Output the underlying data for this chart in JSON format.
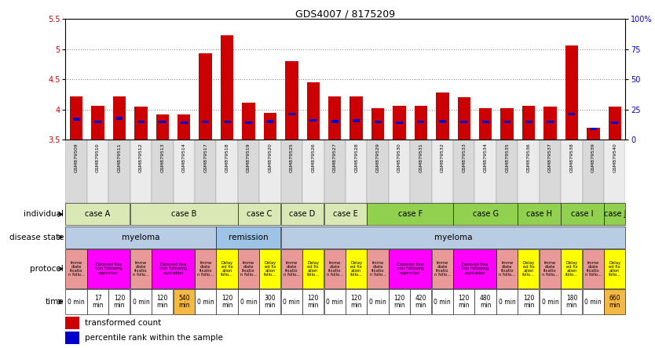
{
  "title": "GDS4007 / 8175209",
  "gsm_ids": [
    "GSM879509",
    "GSM879510",
    "GSM879511",
    "GSM879512",
    "GSM879513",
    "GSM879514",
    "GSM879517",
    "GSM879518",
    "GSM879519",
    "GSM879520",
    "GSM879525",
    "GSM879526",
    "GSM879527",
    "GSM879528",
    "GSM879529",
    "GSM879530",
    "GSM879531",
    "GSM879532",
    "GSM879533",
    "GSM879534",
    "GSM879535",
    "GSM879536",
    "GSM879537",
    "GSM879538",
    "GSM879539",
    "GSM879540"
  ],
  "red_values": [
    4.22,
    4.06,
    4.22,
    4.05,
    3.92,
    3.92,
    4.93,
    5.23,
    4.12,
    3.95,
    4.8,
    4.45,
    4.22,
    4.22,
    4.02,
    4.06,
    4.06,
    4.28,
    4.21,
    4.02,
    4.02,
    4.06,
    4.05,
    5.06,
    3.7,
    4.05
  ],
  "blue_values": [
    3.82,
    3.77,
    3.83,
    3.77,
    3.77,
    3.76,
    3.77,
    3.77,
    3.76,
    3.78,
    3.9,
    3.8,
    3.78,
    3.79,
    3.77,
    3.76,
    3.77,
    3.78,
    3.77,
    3.77,
    3.77,
    3.77,
    3.77,
    3.9,
    3.77,
    3.76
  ],
  "y_min": 3.5,
  "y_max": 5.5,
  "y_ticks": [
    3.5,
    4.0,
    4.5,
    5.0,
    5.5
  ],
  "y2_ticks_labels": [
    "0",
    "25",
    "50",
    "75",
    "100%"
  ],
  "y2_tick_positions": [
    3.5,
    4.0,
    4.5,
    5.0,
    5.5
  ],
  "individual_labels": [
    {
      "label": "case A",
      "start": 0,
      "end": 3,
      "color": "#d9e8b4"
    },
    {
      "label": "case B",
      "start": 3,
      "end": 8,
      "color": "#d9e8b4"
    },
    {
      "label": "case C",
      "start": 8,
      "end": 10,
      "color": "#d9e8b4"
    },
    {
      "label": "case D",
      "start": 10,
      "end": 12,
      "color": "#d9e8b4"
    },
    {
      "label": "case E",
      "start": 12,
      "end": 14,
      "color": "#d9e8b4"
    },
    {
      "label": "case F",
      "start": 14,
      "end": 18,
      "color": "#92d050"
    },
    {
      "label": "case G",
      "start": 18,
      "end": 21,
      "color": "#92d050"
    },
    {
      "label": "case H",
      "start": 21,
      "end": 23,
      "color": "#92d050"
    },
    {
      "label": "case I",
      "start": 23,
      "end": 25,
      "color": "#92d050"
    },
    {
      "label": "case J",
      "start": 25,
      "end": 26,
      "color": "#92d050"
    }
  ],
  "disease_state": [
    {
      "label": "myeloma",
      "start": 0,
      "end": 7,
      "color": "#b8cce4"
    },
    {
      "label": "remission",
      "start": 7,
      "end": 10,
      "color": "#9dc3e6"
    },
    {
      "label": "myeloma",
      "start": 10,
      "end": 26,
      "color": "#b8cce4"
    }
  ],
  "protocol_data": [
    {
      "label": "Imme\ndiate\nfixatio\nn follo...",
      "start": 0,
      "end": 1,
      "color": "#ea9999"
    },
    {
      "label": "Delayed fixa\ntion following\naspiration",
      "start": 1,
      "end": 3,
      "color": "#ff00ff"
    },
    {
      "label": "Imme\ndiate\nfixatio\nn follo...",
      "start": 3,
      "end": 4,
      "color": "#ea9999"
    },
    {
      "label": "Delayed fixa\ntion following\naspiration",
      "start": 4,
      "end": 6,
      "color": "#ff00ff"
    },
    {
      "label": "Imme\ndiate\nfixatio\nn follo...",
      "start": 6,
      "end": 7,
      "color": "#ea9999"
    },
    {
      "label": "Delay\ned fix\nation\nfollo...",
      "start": 7,
      "end": 8,
      "color": "#ffff00"
    },
    {
      "label": "Imme\ndiate\nfixatio\nn follo...",
      "start": 8,
      "end": 9,
      "color": "#ea9999"
    },
    {
      "label": "Delay\ned fix\nation\nfollo...",
      "start": 9,
      "end": 10,
      "color": "#ffff00"
    },
    {
      "label": "Imme\ndiate\nfixatio\nn follo...",
      "start": 10,
      "end": 11,
      "color": "#ea9999"
    },
    {
      "label": "Delay\ned fix\nation\nfollo...",
      "start": 11,
      "end": 12,
      "color": "#ffff00"
    },
    {
      "label": "Imme\ndiate\nfixatio\nn follo...",
      "start": 12,
      "end": 13,
      "color": "#ea9999"
    },
    {
      "label": "Delay\ned fix\nation\nfollo...",
      "start": 13,
      "end": 14,
      "color": "#ffff00"
    },
    {
      "label": "Imme\ndiate\nfixatio\nn follo...",
      "start": 14,
      "end": 15,
      "color": "#ea9999"
    },
    {
      "label": "Delayed fixa\ntion following\naspiration",
      "start": 15,
      "end": 17,
      "color": "#ff00ff"
    },
    {
      "label": "Imme\ndiate\nfixatio\nn follo...",
      "start": 17,
      "end": 18,
      "color": "#ea9999"
    },
    {
      "label": "Delayed fixa\ntion following\naspiration",
      "start": 18,
      "end": 20,
      "color": "#ff00ff"
    },
    {
      "label": "Imme\ndiate\nfixatio\nn follo...",
      "start": 20,
      "end": 21,
      "color": "#ea9999"
    },
    {
      "label": "Delay\ned fix\nation\nfollo...",
      "start": 21,
      "end": 22,
      "color": "#ffff00"
    },
    {
      "label": "Imme\ndiate\nfixatio\nn follo...",
      "start": 22,
      "end": 23,
      "color": "#ea9999"
    },
    {
      "label": "Delay\ned fix\nation\nfollo...",
      "start": 23,
      "end": 24,
      "color": "#ffff00"
    },
    {
      "label": "Imme\ndiate\nfixatio\nn follo...",
      "start": 24,
      "end": 25,
      "color": "#ea9999"
    },
    {
      "label": "Delay\ned fix\nation\nfollo...",
      "start": 25,
      "end": 26,
      "color": "#ffff00"
    }
  ],
  "time_data": [
    {
      "label": "0 min",
      "start": 0,
      "end": 1,
      "color": "#ffffff"
    },
    {
      "label": "17\nmin",
      "start": 1,
      "end": 2,
      "color": "#ffffff"
    },
    {
      "label": "120\nmin",
      "start": 2,
      "end": 3,
      "color": "#ffffff"
    },
    {
      "label": "0 min",
      "start": 3,
      "end": 4,
      "color": "#ffffff"
    },
    {
      "label": "120\nmin",
      "start": 4,
      "end": 5,
      "color": "#ffffff"
    },
    {
      "label": "540\nmin",
      "start": 5,
      "end": 6,
      "color": "#f4b942"
    },
    {
      "label": "0 min",
      "start": 6,
      "end": 7,
      "color": "#ffffff"
    },
    {
      "label": "120\nmin",
      "start": 7,
      "end": 8,
      "color": "#ffffff"
    },
    {
      "label": "0 min",
      "start": 8,
      "end": 9,
      "color": "#ffffff"
    },
    {
      "label": "300\nmin",
      "start": 9,
      "end": 10,
      "color": "#ffffff"
    },
    {
      "label": "0 min",
      "start": 10,
      "end": 11,
      "color": "#ffffff"
    },
    {
      "label": "120\nmin",
      "start": 11,
      "end": 12,
      "color": "#ffffff"
    },
    {
      "label": "0 min",
      "start": 12,
      "end": 13,
      "color": "#ffffff"
    },
    {
      "label": "120\nmin",
      "start": 13,
      "end": 14,
      "color": "#ffffff"
    },
    {
      "label": "0 min",
      "start": 14,
      "end": 15,
      "color": "#ffffff"
    },
    {
      "label": "120\nmin",
      "start": 15,
      "end": 16,
      "color": "#ffffff"
    },
    {
      "label": "420\nmin",
      "start": 16,
      "end": 17,
      "color": "#ffffff"
    },
    {
      "label": "0 min",
      "start": 17,
      "end": 18,
      "color": "#ffffff"
    },
    {
      "label": "120\nmin",
      "start": 18,
      "end": 19,
      "color": "#ffffff"
    },
    {
      "label": "480\nmin",
      "start": 19,
      "end": 20,
      "color": "#ffffff"
    },
    {
      "label": "0 min",
      "start": 20,
      "end": 21,
      "color": "#ffffff"
    },
    {
      "label": "120\nmin",
      "start": 21,
      "end": 22,
      "color": "#ffffff"
    },
    {
      "label": "0 min",
      "start": 22,
      "end": 23,
      "color": "#ffffff"
    },
    {
      "label": "180\nmin",
      "start": 23,
      "end": 24,
      "color": "#ffffff"
    },
    {
      "label": "0 min",
      "start": 24,
      "end": 25,
      "color": "#ffffff"
    },
    {
      "label": "660\nmin",
      "start": 25,
      "end": 26,
      "color": "#f4b942"
    }
  ],
  "bar_color_red": "#cc0000",
  "bar_color_blue": "#0000cc",
  "bar_width": 0.6,
  "left_label_color": "#cc0000",
  "right_label_color": "#0000cc"
}
